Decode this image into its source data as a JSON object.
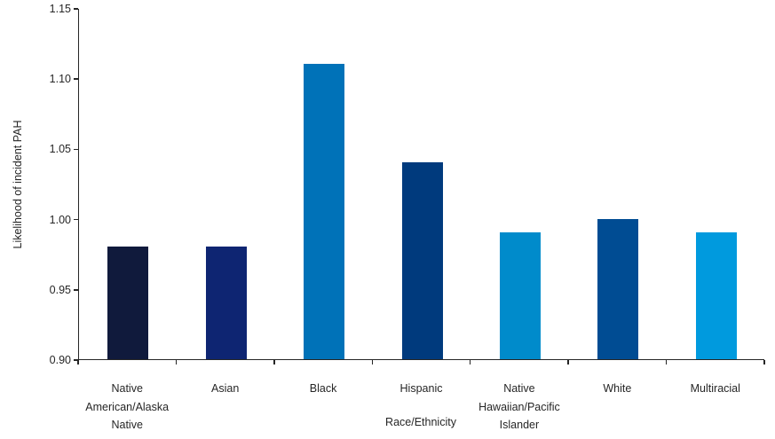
{
  "page": {
    "background_color": "#FFFFFF",
    "text_color": "#262626",
    "axis_color": "#262626"
  },
  "chart_data": {
    "type": "bar",
    "title": "",
    "xlabel": "Race/Ethnicity",
    "ylabel": "Likelihood of incident PAH",
    "categories": [
      "Native American/Alaska Native",
      "Asian",
      "Black",
      "Hispanic",
      "Native Hawaiian/Pacific Islander",
      "White",
      "Multiracial"
    ],
    "values": [
      0.98,
      0.98,
      1.11,
      1.04,
      0.99,
      1.0,
      0.99
    ],
    "bar_colors": [
      "#101A3C",
      "#0E2572",
      "#0072B8",
      "#003A7D",
      "#008BCB",
      "#004C93",
      "#009ADE"
    ],
    "ylim": [
      0.9,
      1.15
    ],
    "ytick_step": 0.05,
    "ytick_labels": [
      "0.90",
      "0.95",
      "1.00",
      "1.05",
      "1.10",
      "1.15"
    ],
    "grid": false,
    "legend_position": "none"
  }
}
